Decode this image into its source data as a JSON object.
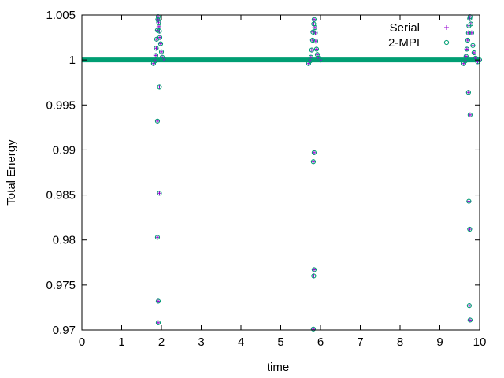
{
  "chart_data": {
    "type": "scatter",
    "title": "",
    "xlabel": "time",
    "ylabel": "Total Energy",
    "xlim": [
      0,
      10
    ],
    "ylim": [
      0.97,
      1.005
    ],
    "x_ticks": [
      0,
      1,
      2,
      3,
      4,
      5,
      6,
      7,
      8,
      9,
      10
    ],
    "y_ticks": [
      "0.97",
      "0.975",
      "0.98",
      "0.985",
      "0.99",
      "0.995",
      "1",
      "1.005"
    ],
    "grid": false,
    "legend_position": "top-right",
    "baseline_value": 1.0,
    "series": [
      {
        "name": "Serial",
        "marker": "plus",
        "color": "#9400d3",
        "points": [
          [
            1.8,
            0.9996
          ],
          [
            1.84,
            0.9999
          ],
          [
            1.86,
            1.0005
          ],
          [
            1.87,
            1.0013
          ],
          [
            1.88,
            1.0023
          ],
          [
            1.9,
            1.0033
          ],
          [
            1.91,
            1.0045
          ],
          [
            1.92,
            1.0048
          ],
          [
            1.93,
            1.0042
          ],
          [
            1.94,
            1.0037
          ],
          [
            1.95,
            1.0032
          ],
          [
            1.95,
            0.997
          ],
          [
            1.9,
            0.9932
          ],
          [
            1.95,
            0.9852
          ],
          [
            1.9,
            0.9803
          ],
          [
            1.92,
            0.9732
          ],
          [
            1.92,
            0.9708
          ],
          [
            1.96,
            1.0025
          ],
          [
            1.98,
            1.0018
          ],
          [
            2.0,
            1.0009
          ],
          [
            2.02,
            1.0003
          ],
          [
            2.06,
            1.0001
          ],
          [
            5.7,
            0.9996
          ],
          [
            5.74,
            0.9999
          ],
          [
            5.76,
            1.0003
          ],
          [
            5.78,
            1.0011
          ],
          [
            5.8,
            1.0022
          ],
          [
            5.81,
            1.0031
          ],
          [
            5.83,
            1.004
          ],
          [
            5.84,
            1.0045
          ],
          [
            5.86,
            1.0036
          ],
          [
            5.87,
            1.003
          ],
          [
            5.88,
            1.0021
          ],
          [
            5.84,
            0.9897
          ],
          [
            5.82,
            0.9887
          ],
          [
            5.84,
            0.9767
          ],
          [
            5.83,
            0.976
          ],
          [
            5.82,
            0.9701
          ],
          [
            5.9,
            1.0012
          ],
          [
            5.92,
            1.0006
          ],
          [
            5.95,
            1.0002
          ],
          [
            6.0,
            1.0
          ],
          [
            9.6,
            0.9996
          ],
          [
            9.64,
            0.9999
          ],
          [
            9.66,
            1.0004
          ],
          [
            9.68,
            1.0012
          ],
          [
            9.7,
            1.0022
          ],
          [
            9.72,
            1.003
          ],
          [
            9.73,
            1.0038
          ],
          [
            9.75,
            1.0046
          ],
          [
            9.76,
            1.0048
          ],
          [
            9.78,
            1.004
          ],
          [
            9.8,
            1.003
          ],
          [
            9.72,
            0.9964
          ],
          [
            9.76,
            0.9939
          ],
          [
            9.73,
            0.9843
          ],
          [
            9.75,
            0.9812
          ],
          [
            9.74,
            0.9727
          ],
          [
            9.76,
            0.9711
          ],
          [
            9.83,
            1.0016
          ],
          [
            9.86,
            1.0008
          ],
          [
            9.9,
            1.0002
          ],
          [
            9.95,
            0.9998
          ],
          [
            10.0,
            1.0
          ]
        ]
      },
      {
        "name": "2-MPI",
        "marker": "circle",
        "color": "#009e73",
        "points": [
          [
            1.8,
            0.9996
          ],
          [
            1.84,
            0.9999
          ],
          [
            1.86,
            1.0005
          ],
          [
            1.87,
            1.0013
          ],
          [
            1.88,
            1.0023
          ],
          [
            1.9,
            1.0033
          ],
          [
            1.91,
            1.0045
          ],
          [
            1.92,
            1.0048
          ],
          [
            1.93,
            1.0042
          ],
          [
            1.94,
            1.0037
          ],
          [
            1.95,
            1.0032
          ],
          [
            1.95,
            0.997
          ],
          [
            1.9,
            0.9932
          ],
          [
            1.95,
            0.9852
          ],
          [
            1.9,
            0.9803
          ],
          [
            1.92,
            0.9732
          ],
          [
            1.92,
            0.9708
          ],
          [
            1.96,
            1.0025
          ],
          [
            1.98,
            1.0018
          ],
          [
            2.0,
            1.0009
          ],
          [
            2.02,
            1.0003
          ],
          [
            2.06,
            1.0001
          ],
          [
            5.7,
            0.9996
          ],
          [
            5.74,
            0.9999
          ],
          [
            5.76,
            1.0003
          ],
          [
            5.78,
            1.0011
          ],
          [
            5.8,
            1.0022
          ],
          [
            5.81,
            1.0031
          ],
          [
            5.83,
            1.004
          ],
          [
            5.84,
            1.0045
          ],
          [
            5.86,
            1.0036
          ],
          [
            5.87,
            1.003
          ],
          [
            5.88,
            1.0021
          ],
          [
            5.84,
            0.9897
          ],
          [
            5.82,
            0.9887
          ],
          [
            5.84,
            0.9767
          ],
          [
            5.83,
            0.976
          ],
          [
            5.82,
            0.9701
          ],
          [
            5.9,
            1.0012
          ],
          [
            5.92,
            1.0006
          ],
          [
            5.95,
            1.0002
          ],
          [
            6.0,
            1.0
          ],
          [
            9.6,
            0.9996
          ],
          [
            9.64,
            0.9999
          ],
          [
            9.66,
            1.0004
          ],
          [
            9.68,
            1.0012
          ],
          [
            9.7,
            1.0022
          ],
          [
            9.72,
            1.003
          ],
          [
            9.73,
            1.0038
          ],
          [
            9.75,
            1.0046
          ],
          [
            9.76,
            1.0048
          ],
          [
            9.78,
            1.004
          ],
          [
            9.8,
            1.003
          ],
          [
            9.72,
            0.9964
          ],
          [
            9.76,
            0.9939
          ],
          [
            9.73,
            0.9843
          ],
          [
            9.75,
            0.9812
          ],
          [
            9.74,
            0.9727
          ],
          [
            9.76,
            0.9711
          ],
          [
            9.83,
            1.0016
          ],
          [
            9.86,
            1.0008
          ],
          [
            9.9,
            1.0002
          ],
          [
            9.95,
            0.9998
          ],
          [
            10.0,
            1.0
          ]
        ]
      }
    ],
    "baseline_series_note": ""
  }
}
